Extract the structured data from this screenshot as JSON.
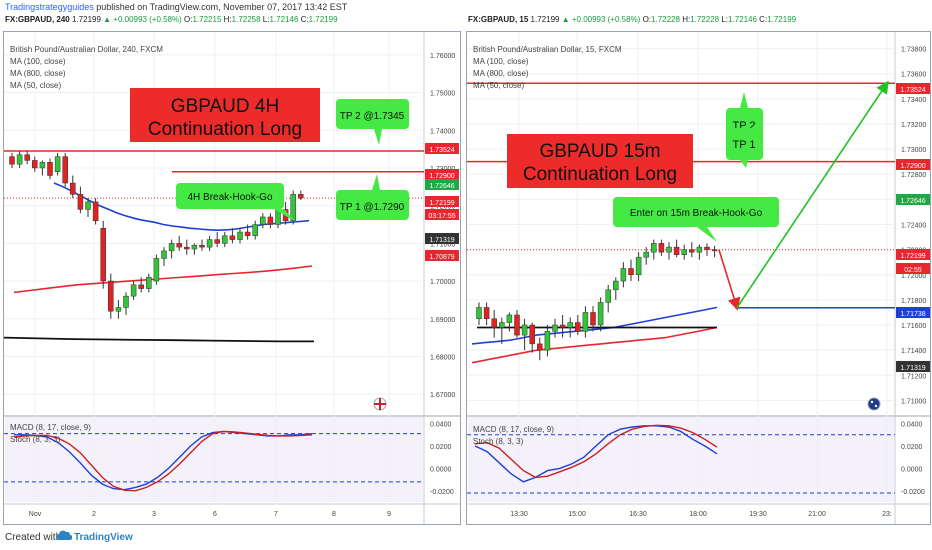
{
  "header": {
    "site": "Tradingstrategyguides",
    "published": "published on TradingView.com, November 07, 2017 13:42 EST"
  },
  "footer": {
    "created_with": "Created with",
    "brand": "TradingView"
  },
  "charts": [
    {
      "id": "left",
      "ticker_line": {
        "symbol": "FX:GBPAUD, 240",
        "last": "1.72199",
        "change": "▲ +0.00993 (+0.58%)",
        "o_label": "O:",
        "o": "1.72215",
        "h_label": "H:",
        "h": "1.72258",
        "l_label": "L:",
        "l": "1.72146",
        "c_label": "C:",
        "c": "1.72199"
      },
      "legend": [
        "British Pound/Australian Dollar, 240, FXCM",
        "MA (100, close)",
        "MA (800, close)",
        "MA (50, close)"
      ],
      "banner": {
        "line1": "GBPAUD 4H",
        "line2": "Continuation Long"
      },
      "callouts": [
        "TP 2 @1.7345",
        "TP 1 @1.7290",
        "4H Break-Hook-Go"
      ],
      "indicator_labels": [
        "MACD (8, 17, close, 9)",
        "Stoch (8, 3, 3)"
      ],
      "price_axis": [
        "1.76000",
        "1.75000",
        "1.74000",
        "1.73000",
        "1.72000",
        "1.71000",
        "1.70000",
        "1.69000",
        "1.68000",
        "1.67000"
      ],
      "price_tags": [
        {
          "text": "1.73524",
          "color": "#e8262f"
        },
        {
          "text": "1.72900",
          "color": "#e8262f"
        },
        {
          "text": "1.72646",
          "color": "#1fa945"
        },
        {
          "text": "1.72199",
          "color": "#e8262f"
        },
        {
          "text": "03:17:55",
          "color": "#e8262f"
        },
        {
          "text": "1.71319",
          "color": "#333333"
        },
        {
          "text": "1.70879",
          "color": "#e8262f"
        }
      ],
      "osc_axis": [
        "0.0400",
        "0.0200",
        "0.0000",
        "-0.0200"
      ],
      "time_axis": [
        "Nov",
        "2",
        "3",
        "6",
        "7",
        "8",
        "9"
      ]
    },
    {
      "id": "right",
      "ticker_line": {
        "symbol": "FX:GBPAUD, 15",
        "last": "1.72199",
        "change": "▲ +0.00993 (+0.58%)",
        "o_label": "O:",
        "o": "1.72228",
        "h_label": "H:",
        "h": "1.72228",
        "l_label": "L:",
        "l": "1.72146",
        "c_label": "C:",
        "c": "1.72199"
      },
      "legend": [
        "British Pound/Australian Dollar, 15, FXCM",
        "MA (100, close)",
        "MA (800, close)",
        "MA (50, close)"
      ],
      "banner": {
        "line1": "GBPAUD 15m",
        "line2": "Continuation Long"
      },
      "callouts": [
        "TP 2",
        "TP 1",
        "Enter on 15m Break-Hook-Go"
      ],
      "indicator_labels": [
        "MACD (8, 17, close, 9)",
        "Stoch (8, 3, 3)"
      ],
      "price_axis": [
        "1.73800",
        "1.73600",
        "1.73400",
        "1.73200",
        "1.73000",
        "1.72800",
        "1.72600",
        "1.72400",
        "1.72200",
        "1.72000",
        "1.71800",
        "1.71600",
        "1.71400",
        "1.71200",
        "1.71000"
      ],
      "price_tags": [
        {
          "text": "1.73524",
          "color": "#e8262f"
        },
        {
          "text": "1.72900",
          "color": "#e8262f"
        },
        {
          "text": "1.72646",
          "color": "#1fa945"
        },
        {
          "text": "1.72199",
          "color": "#e8262f"
        },
        {
          "text": "02:55",
          "color": "#e8262f"
        },
        {
          "text": "1.71738",
          "color": "#1c3fd6"
        },
        {
          "text": "1.71319",
          "color": "#333333"
        }
      ],
      "osc_axis": [
        "0.0400",
        "0.0200",
        "0.0000",
        "-0.0200"
      ],
      "time_axis": [
        "13:30",
        "15:00",
        "16:30",
        "18:00",
        "19:30",
        "21:00",
        "23:"
      ]
    }
  ],
  "chart_data": [
    {
      "type": "candlestick",
      "symbol": "FX:GBPAUD",
      "timeframe": "240",
      "ylim": [
        1.665,
        1.765
      ],
      "levels": [
        {
          "name": "TP 2",
          "value": 1.7345,
          "color": "#e8262f"
        },
        {
          "name": "TP 1",
          "value": 1.729,
          "color": "#e8262f"
        },
        {
          "name": "last",
          "value": 1.72199,
          "color": "#e8262f",
          "style": "dotted"
        }
      ],
      "candles": [
        [
          1.733,
          1.734,
          1.73,
          1.731
        ],
        [
          1.731,
          1.7345,
          1.73,
          1.7335
        ],
        [
          1.7335,
          1.7345,
          1.731,
          1.732
        ],
        [
          1.732,
          1.733,
          1.729,
          1.73
        ],
        [
          1.73,
          1.732,
          1.728,
          1.7315
        ],
        [
          1.7315,
          1.7325,
          1.727,
          1.728
        ],
        [
          1.729,
          1.734,
          1.728,
          1.733
        ],
        [
          1.733,
          1.734,
          1.725,
          1.726
        ],
        [
          1.726,
          1.728,
          1.722,
          1.723
        ],
        [
          1.723,
          1.725,
          1.718,
          1.719
        ],
        [
          1.719,
          1.722,
          1.717,
          1.721
        ],
        [
          1.721,
          1.722,
          1.715,
          1.716
        ],
        [
          1.714,
          1.716,
          1.698,
          1.7
        ],
        [
          1.7,
          1.702,
          1.69,
          1.692
        ],
        [
          1.692,
          1.695,
          1.69,
          1.693
        ],
        [
          1.693,
          1.697,
          1.691,
          1.696
        ],
        [
          1.696,
          1.7,
          1.695,
          1.699
        ],
        [
          1.699,
          1.701,
          1.697,
          1.698
        ],
        [
          1.698,
          1.702,
          1.697,
          1.701
        ],
        [
          1.7,
          1.707,
          1.699,
          1.706
        ],
        [
          1.706,
          1.709,
          1.704,
          1.708
        ],
        [
          1.708,
          1.711,
          1.706,
          1.71
        ],
        [
          1.71,
          1.712,
          1.708,
          1.709
        ],
        [
          1.709,
          1.711,
          1.707,
          1.7085
        ],
        [
          1.7085,
          1.71,
          1.707,
          1.7095
        ],
        [
          1.7095,
          1.711,
          1.708,
          1.709
        ],
        [
          1.709,
          1.712,
          1.708,
          1.711
        ],
        [
          1.711,
          1.713,
          1.709,
          1.71
        ],
        [
          1.71,
          1.713,
          1.709,
          1.712
        ],
        [
          1.712,
          1.714,
          1.71,
          1.711
        ],
        [
          1.711,
          1.714,
          1.71,
          1.713
        ],
        [
          1.713,
          1.715,
          1.711,
          1.712
        ],
        [
          1.712,
          1.716,
          1.711,
          1.715
        ],
        [
          1.715,
          1.718,
          1.714,
          1.717
        ],
        [
          1.717,
          1.718,
          1.714,
          1.715
        ],
        [
          1.715,
          1.72,
          1.714,
          1.719
        ],
        [
          1.719,
          1.721,
          1.715,
          1.716
        ],
        [
          1.716,
          1.724,
          1.715,
          1.723
        ],
        [
          1.723,
          1.724,
          1.7215,
          1.722
        ]
      ],
      "series": [
        {
          "name": "MA (50, close)",
          "color": "#1c3fd6",
          "values": [
            1.726,
            1.725,
            1.7238,
            1.7225,
            1.7212,
            1.72,
            1.719,
            1.718,
            1.7172,
            1.7165,
            1.716,
            1.7156,
            1.715,
            1.7146,
            1.7143,
            1.714,
            1.7138,
            1.7136,
            1.7135,
            1.7136,
            1.7138,
            1.7142,
            1.7146,
            1.715,
            1.7152,
            1.7154,
            1.7156,
            1.7158,
            1.716
          ]
        },
        {
          "name": "MA (100, close)",
          "color": "#e8262f",
          "values": [
            1.697,
            1.6975,
            1.698,
            1.6985,
            1.699,
            1.6993,
            1.6996,
            1.6999,
            1.7002,
            1.7005,
            1.7008,
            1.7011,
            1.7014,
            1.7017,
            1.702,
            1.7023,
            1.7026,
            1.703,
            1.7035,
            1.704
          ]
        },
        {
          "name": "MA (800, close)",
          "color": "#111111",
          "values": [
            1.685,
            1.6848,
            1.6846,
            1.6845,
            1.6844,
            1.6843,
            1.6842,
            1.6841,
            1.684,
            1.684
          ]
        }
      ],
      "oscillator": {
        "ylim": [
          -0.03,
          0.045
        ],
        "dashed_levels": [
          0.031,
          -0.012
        ],
        "series": [
          {
            "name": "blue",
            "color": "#1c3fd6",
            "values": [
              0.03,
              0.03,
              0.0295,
              0.028,
              0.023,
              0.015,
              0.005,
              -0.006,
              -0.014,
              -0.018,
              -0.019,
              -0.017,
              -0.014,
              -0.008,
              0.0,
              0.01,
              0.02,
              0.028,
              0.032,
              0.033,
              0.032,
              0.031,
              0.03,
              0.029,
              0.029,
              0.03,
              0.03,
              0.031
            ]
          },
          {
            "name": "red",
            "color": "#cc1f1f",
            "values": [
              0.028,
              0.029,
              0.0295,
              0.0295,
              0.027,
              0.022,
              0.014,
              0.003,
              -0.008,
              -0.016,
              -0.0195,
              -0.02,
              -0.017,
              -0.012,
              -0.005,
              0.004,
              0.014,
              0.024,
              0.031,
              0.033,
              0.0325,
              0.0315,
              0.0305,
              0.0295,
              0.029,
              0.029,
              0.0295,
              0.03
            ]
          }
        ]
      }
    },
    {
      "type": "candlestick",
      "symbol": "FX:GBPAUD",
      "timeframe": "15",
      "ylim": [
        1.709,
        1.739
      ],
      "levels": [
        {
          "name": "TP 2",
          "value": 1.73524,
          "color": "#e8262f"
        },
        {
          "name": "TP 1",
          "value": 1.729,
          "color": "#e8262f"
        },
        {
          "name": "entry",
          "value": 1.71738,
          "color": "#1c3fd6"
        },
        {
          "name": "last",
          "value": 1.72199,
          "color": "#e8262f",
          "style": "dotted"
        }
      ],
      "candles": [
        [
          1.7165,
          1.7178,
          1.716,
          1.7174
        ],
        [
          1.7174,
          1.7178,
          1.716,
          1.7165
        ],
        [
          1.7165,
          1.7172,
          1.715,
          1.7158
        ],
        [
          1.7158,
          1.7166,
          1.7145,
          1.7162
        ],
        [
          1.7162,
          1.717,
          1.7155,
          1.7168
        ],
        [
          1.7168,
          1.7172,
          1.715,
          1.7152
        ],
        [
          1.7152,
          1.7165,
          1.714,
          1.716
        ],
        [
          1.716,
          1.7162,
          1.7138,
          1.7145
        ],
        [
          1.7145,
          1.715,
          1.7132,
          1.714
        ],
        [
          1.714,
          1.716,
          1.7135,
          1.7155
        ],
        [
          1.7155,
          1.7165,
          1.715,
          1.716
        ],
        [
          1.716,
          1.7168,
          1.715,
          1.7158
        ],
        [
          1.7158,
          1.7166,
          1.715,
          1.7162
        ],
        [
          1.7162,
          1.7168,
          1.7152,
          1.7155
        ],
        [
          1.7155,
          1.7175,
          1.715,
          1.717
        ],
        [
          1.717,
          1.7175,
          1.7155,
          1.716
        ],
        [
          1.716,
          1.7182,
          1.7155,
          1.7178
        ],
        [
          1.7178,
          1.7192,
          1.717,
          1.7188
        ],
        [
          1.7188,
          1.7198,
          1.718,
          1.7195
        ],
        [
          1.7195,
          1.721,
          1.719,
          1.7205
        ],
        [
          1.7205,
          1.7212,
          1.7195,
          1.72
        ],
        [
          1.72,
          1.7218,
          1.7195,
          1.7214
        ],
        [
          1.7214,
          1.7222,
          1.7208,
          1.7218
        ],
        [
          1.7218,
          1.7228,
          1.7212,
          1.7225
        ],
        [
          1.7225,
          1.7228,
          1.7215,
          1.7218
        ],
        [
          1.7218,
          1.7226,
          1.7212,
          1.7222
        ],
        [
          1.7222,
          1.7228,
          1.7214,
          1.7216
        ],
        [
          1.7216,
          1.7224,
          1.7212,
          1.722
        ],
        [
          1.722,
          1.7226,
          1.7214,
          1.7218
        ],
        [
          1.7218,
          1.7224,
          1.7212,
          1.7222
        ],
        [
          1.7222,
          1.7225,
          1.7215,
          1.722
        ],
        [
          1.722,
          1.7223,
          1.7214,
          1.7219
        ]
      ],
      "series": [
        {
          "name": "MA (50, close)",
          "color": "#1c3fd6",
          "values": [
            1.7145,
            1.7146,
            1.7147,
            1.7148,
            1.715,
            1.7152,
            1.7153,
            1.7154,
            1.7155,
            1.7156,
            1.7157,
            1.7158,
            1.716,
            1.7162,
            1.7164,
            1.7166,
            1.7168,
            1.717,
            1.7172,
            1.7174
          ]
        },
        {
          "name": "MA (100, close)",
          "color": "#e8262f",
          "values": [
            1.713,
            1.7132,
            1.7134,
            1.7136,
            1.7138,
            1.714,
            1.7141,
            1.7142,
            1.7143,
            1.7144,
            1.7145,
            1.7146,
            1.7147,
            1.7148,
            1.7149,
            1.715,
            1.7152,
            1.7154,
            1.7156,
            1.7158
          ]
        },
        {
          "name": "MA (800, close)",
          "color": "#111111",
          "values": [
            1.7158,
            1.7158,
            1.7158,
            1.7158,
            1.7158,
            1.7158,
            1.7158,
            1.7158,
            1.7158,
            1.7158
          ]
        }
      ],
      "projection": [
        {
          "from": 1.72199,
          "to": 1.71738,
          "color": "#e8262f"
        },
        {
          "from": 1.71738,
          "to": 1.73524,
          "color": "#22c222"
        }
      ],
      "oscillator": {
        "ylim": [
          -0.03,
          0.045
        ],
        "dashed_levels": [
          0.03,
          -0.022
        ],
        "series": [
          {
            "name": "blue",
            "color": "#1c3fd6",
            "values": [
              0.02,
              0.015,
              0.005,
              -0.005,
              -0.012,
              -0.008,
              -0.002,
              0.0,
              0.004,
              0.01,
              0.02,
              0.03,
              0.035,
              0.037,
              0.038,
              0.038,
              0.037,
              0.033,
              0.026,
              0.02,
              0.013
            ]
          },
          {
            "name": "red",
            "color": "#cc1f1f",
            "values": [
              0.022,
              0.023,
              0.018,
              0.008,
              -0.002,
              -0.008,
              -0.007,
              -0.003,
              0.001,
              0.006,
              0.013,
              0.022,
              0.03,
              0.035,
              0.0375,
              0.0385,
              0.038,
              0.036,
              0.032,
              0.026,
              0.019
            ]
          }
        ]
      }
    }
  ]
}
